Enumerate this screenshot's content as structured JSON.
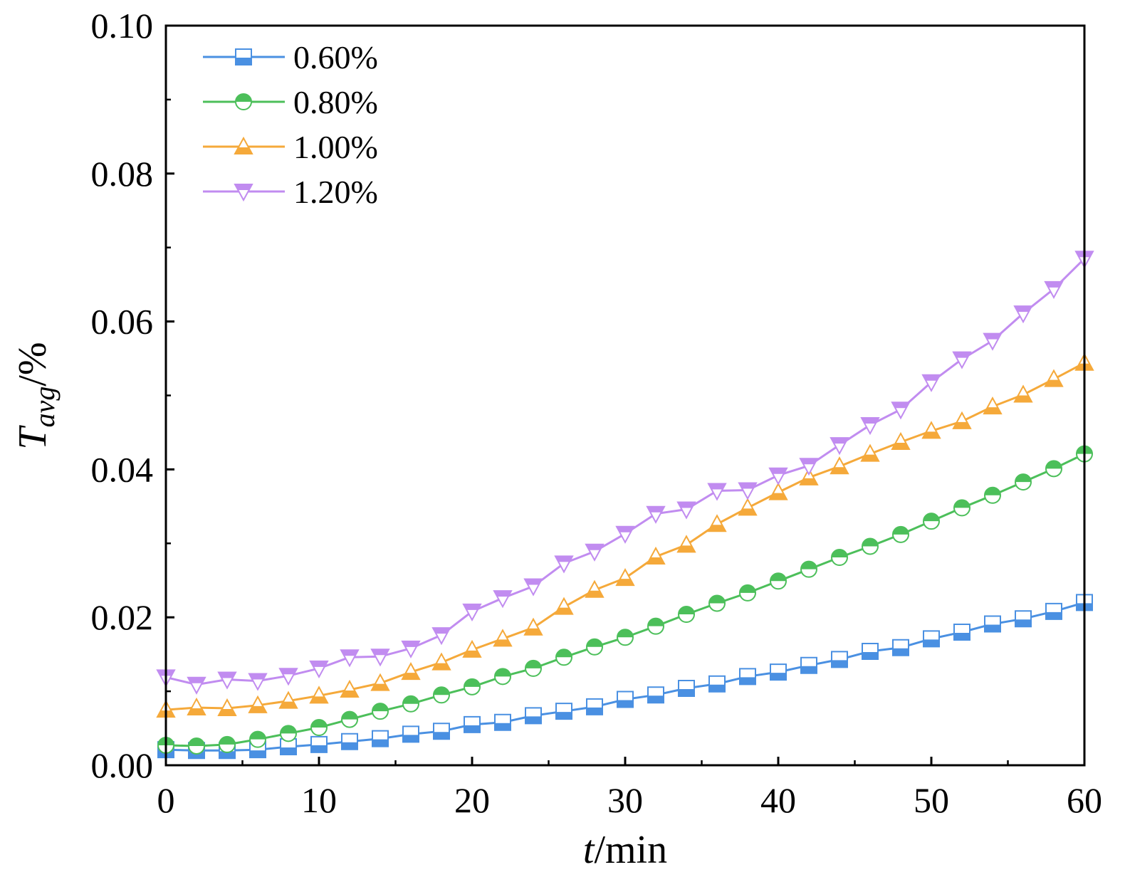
{
  "chart_data": {
    "type": "line",
    "title": "",
    "xlabel": "t/min",
    "xlabel_italic_part": "t",
    "xlabel_rest": "/min",
    "ylabel": "Tavg/%",
    "ylabel_main": "T",
    "ylabel_sub": "avg",
    "ylabel_rest": "/%",
    "xlim": [
      0,
      60
    ],
    "ylim": [
      0,
      0.1
    ],
    "x_ticks": [
      0,
      10,
      20,
      30,
      40,
      50,
      60
    ],
    "x_tick_labels": [
      "0",
      "10",
      "20",
      "30",
      "40",
      "50",
      "60"
    ],
    "y_ticks": [
      0,
      0.02,
      0.04,
      0.06,
      0.08,
      0.1
    ],
    "y_tick_labels": [
      "0.00",
      "0.02",
      "0.04",
      "0.06",
      "0.08",
      "0.10"
    ],
    "legend_position": "top-left",
    "grid": false,
    "x": [
      0,
      2,
      4,
      6,
      8,
      10,
      12,
      14,
      16,
      18,
      20,
      22,
      24,
      26,
      28,
      30,
      32,
      34,
      36,
      38,
      40,
      42,
      44,
      46,
      48,
      50,
      52,
      54,
      56,
      58,
      60
    ],
    "series": [
      {
        "name": "0.60%",
        "marker": "square",
        "color": "#4a90e2",
        "values": [
          0.0021,
          0.002,
          0.002,
          0.0021,
          0.0025,
          0.0028,
          0.0032,
          0.0036,
          0.0042,
          0.0046,
          0.0055,
          0.0058,
          0.0067,
          0.0073,
          0.0079,
          0.0089,
          0.0095,
          0.0104,
          0.011,
          0.012,
          0.0126,
          0.0135,
          0.0143,
          0.0154,
          0.0159,
          0.0171,
          0.018,
          0.0191,
          0.0198,
          0.0208,
          0.022
        ]
      },
      {
        "name": "0.80%",
        "marker": "circle",
        "color": "#4cbf5a",
        "values": [
          0.0027,
          0.0026,
          0.0028,
          0.0035,
          0.0043,
          0.0051,
          0.0062,
          0.0073,
          0.0083,
          0.0095,
          0.0106,
          0.012,
          0.0131,
          0.0146,
          0.016,
          0.0173,
          0.0188,
          0.0204,
          0.0219,
          0.0233,
          0.0249,
          0.0265,
          0.0281,
          0.0296,
          0.0312,
          0.033,
          0.0348,
          0.0365,
          0.0383,
          0.0401,
          0.0421
        ]
      },
      {
        "name": "1.00%",
        "marker": "triangle-up",
        "color": "#f5a93a",
        "values": [
          0.0075,
          0.0078,
          0.0077,
          0.0081,
          0.0087,
          0.0094,
          0.0102,
          0.0111,
          0.0126,
          0.0139,
          0.0156,
          0.0171,
          0.0186,
          0.0214,
          0.0237,
          0.0253,
          0.0282,
          0.0298,
          0.0326,
          0.0348,
          0.0369,
          0.0389,
          0.0404,
          0.0421,
          0.0437,
          0.0452,
          0.0465,
          0.0485,
          0.0501,
          0.0522,
          0.0544
        ]
      },
      {
        "name": "1.20%",
        "marker": "triangle-down",
        "color": "#c18cf0",
        "values": [
          0.0119,
          0.0109,
          0.0116,
          0.0114,
          0.0121,
          0.0131,
          0.0146,
          0.0147,
          0.0158,
          0.0176,
          0.0208,
          0.0226,
          0.0242,
          0.0273,
          0.0289,
          0.0313,
          0.034,
          0.0346,
          0.0371,
          0.0372,
          0.0392,
          0.0405,
          0.0433,
          0.046,
          0.0481,
          0.0518,
          0.0549,
          0.0574,
          0.0611,
          0.0644,
          0.0685
        ]
      }
    ]
  }
}
